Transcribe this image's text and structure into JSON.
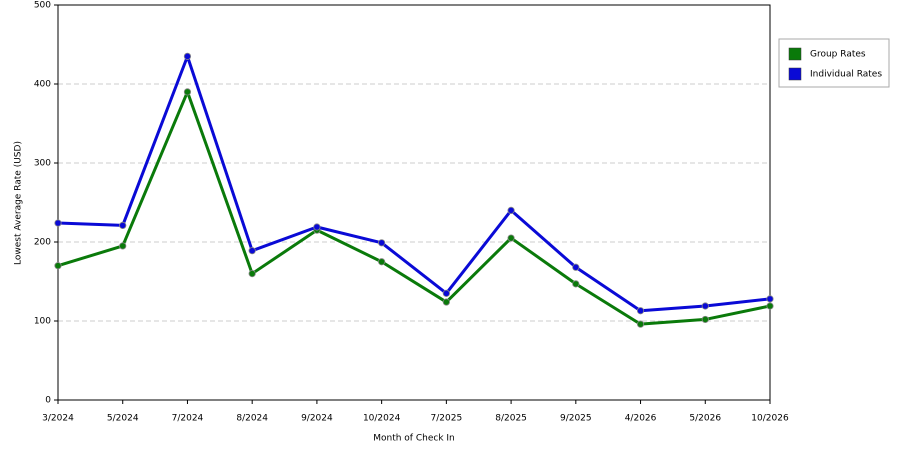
{
  "chart_data": {
    "type": "line",
    "x_label": "Month of Check In",
    "y_label": "Lowest Average Rate (USD)",
    "categories": [
      "3/2024",
      "5/2024",
      "7/2024",
      "8/2024",
      "9/2024",
      "10/2024",
      "7/2025",
      "8/2025",
      "9/2025",
      "4/2026",
      "5/2026",
      "10/2026"
    ],
    "series": [
      {
        "name": "Group Rates",
        "color": "#0a7a0a",
        "values": [
          170,
          195,
          390,
          160,
          215,
          175,
          124,
          205,
          147,
          96,
          102,
          119
        ]
      },
      {
        "name": "Individual Rates",
        "color": "#0a0ad6",
        "values": [
          224,
          221,
          435,
          189,
          219,
          199,
          135,
          240,
          168,
          113,
          119,
          128
        ]
      }
    ],
    "ylim": [
      0,
      500
    ],
    "yticks": [
      0,
      100,
      200,
      300,
      400,
      500
    ],
    "grid": true,
    "legend": "right"
  }
}
